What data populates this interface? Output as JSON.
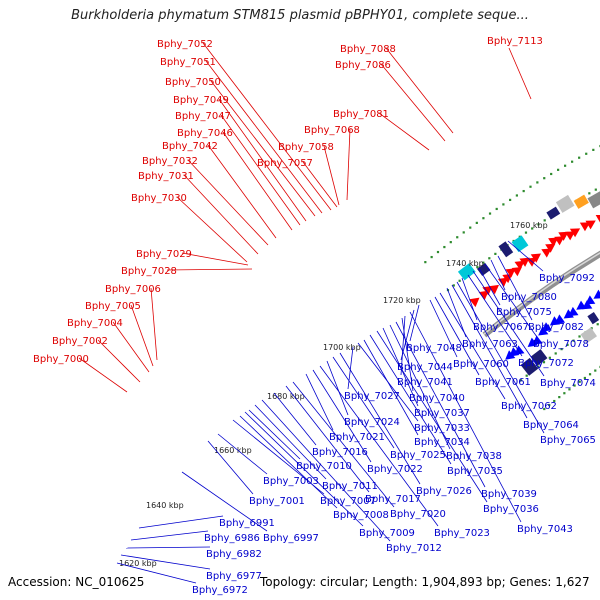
{
  "header": {
    "title": "Burkholderia phymatum STM815 plasmid pBPHY01, complete seque..."
  },
  "footer": {
    "accession": "Accession: NC_010625",
    "summary": "Topology: circular; Length: 1,904,893 bp; Genes: 1,627"
  },
  "colors": {
    "forward": "#ff0000",
    "reverse": "#0000ff",
    "backbone": "#909090",
    "gc_dots": "#2e8b2e"
  },
  "ruler": [
    "1620 kbp",
    "1640 kbp",
    "1660 kbp",
    "1680 kbp",
    "1700 kbp",
    "1720 kbp",
    "1740 kbp",
    "1760 kbp"
  ],
  "forward_genes": [
    "Bphy_7000",
    "Bphy_7002",
    "Bphy_7004",
    "Bphy_7005",
    "Bphy_7006",
    "Bphy_7028",
    "Bphy_7029",
    "Bphy_7030",
    "Bphy_7031",
    "Bphy_7032",
    "Bphy_7042",
    "Bphy_7046",
    "Bphy_7047",
    "Bphy_7049",
    "Bphy_7050",
    "Bphy_7051",
    "Bphy_7052",
    "Bphy_7057",
    "Bphy_7058",
    "Bphy_7068",
    "Bphy_7081",
    "Bphy_7086",
    "Bphy_7088",
    "Bphy_7113"
  ],
  "reverse_genes": [
    "Bphy_6972",
    "Bphy_6977",
    "Bphy_6982",
    "Bphy_6986",
    "Bphy_6991",
    "Bphy_6997",
    "Bphy_7001",
    "Bphy_7003",
    "Bphy_7007",
    "Bphy_7008",
    "Bphy_7009",
    "Bphy_7010",
    "Bphy_7011",
    "Bphy_7012",
    "Bphy_7016",
    "Bphy_7017",
    "Bphy_7020",
    "Bphy_7021",
    "Bphy_7022",
    "Bphy_7023",
    "Bphy_7024",
    "Bphy_7025",
    "Bphy_7026",
    "Bphy_7027",
    "Bphy_7033",
    "Bphy_7034",
    "Bphy_7035",
    "Bphy_7036",
    "Bphy_7037",
    "Bphy_7038",
    "Bphy_7039",
    "Bphy_7040",
    "Bphy_7041",
    "Bphy_7043",
    "Bphy_7044",
    "Bphy_7048",
    "Bphy_7060",
    "Bphy_7061",
    "Bphy_7062",
    "Bphy_7063",
    "Bphy_7064",
    "Bphy_7065",
    "Bphy_7067",
    "Bphy_7072",
    "Bphy_7074",
    "Bphy_7075",
    "Bphy_7078",
    "Bphy_7080",
    "Bphy_7082",
    "Bphy_7092"
  ]
}
